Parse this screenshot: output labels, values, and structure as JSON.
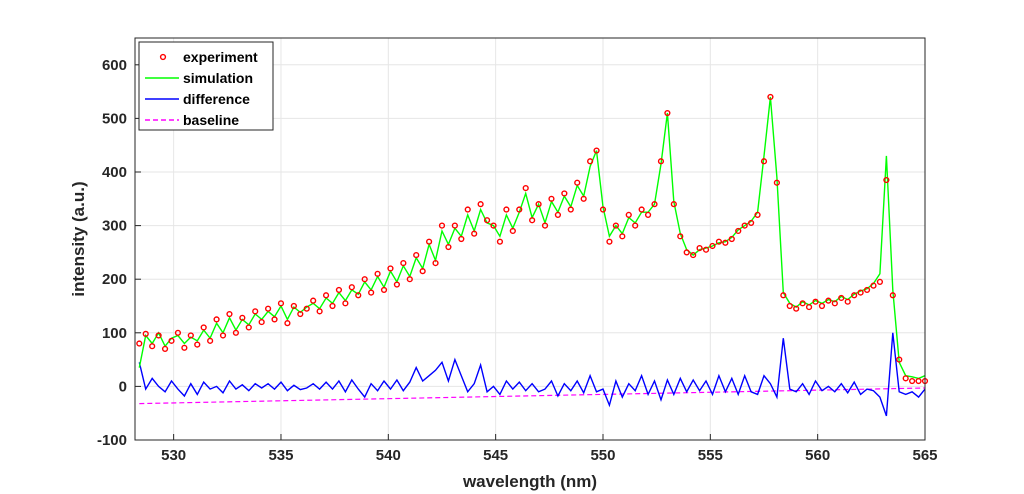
{
  "chart_data": {
    "type": "line",
    "xlabel": "wavelength (nm)",
    "ylabel": "intensity (a.u.)",
    "xlim": [
      528.2,
      565
    ],
    "ylim": [
      -100,
      650
    ],
    "xticks": [
      530,
      535,
      540,
      545,
      550,
      555,
      560,
      565
    ],
    "yticks": [
      -100,
      0,
      100,
      200,
      300,
      400,
      500,
      600
    ],
    "grid": true,
    "legend_position": "top-left",
    "series": [
      {
        "name": "experiment",
        "style": "markers",
        "color": "#ff0000",
        "x": [
          528.4,
          528.7,
          529.0,
          529.3,
          529.6,
          529.9,
          530.2,
          530.5,
          530.8,
          531.1,
          531.4,
          531.7,
          532.0,
          532.3,
          532.6,
          532.9,
          533.2,
          533.5,
          533.8,
          534.1,
          534.4,
          534.7,
          535.0,
          535.3,
          535.6,
          535.9,
          536.2,
          536.5,
          536.8,
          537.1,
          537.4,
          537.7,
          538.0,
          538.3,
          538.6,
          538.9,
          539.2,
          539.5,
          539.8,
          540.1,
          540.4,
          540.7,
          541.0,
          541.3,
          541.6,
          541.9,
          542.2,
          542.5,
          542.8,
          543.1,
          543.4,
          543.7,
          544.0,
          544.3,
          544.6,
          544.9,
          545.2,
          545.5,
          545.8,
          546.1,
          546.4,
          546.7,
          547.0,
          547.3,
          547.6,
          547.9,
          548.2,
          548.5,
          548.8,
          549.1,
          549.4,
          549.7,
          550.0,
          550.3,
          550.6,
          550.9,
          551.2,
          551.5,
          551.8,
          552.1,
          552.4,
          552.7,
          553.0,
          553.3,
          553.6,
          553.9,
          554.2,
          554.5,
          554.8,
          555.1,
          555.4,
          555.7,
          556.0,
          556.3,
          556.6,
          556.9,
          557.2,
          557.5,
          557.8,
          558.1,
          558.4,
          558.7,
          559.0,
          559.3,
          559.6,
          559.9,
          560.2,
          560.5,
          560.8,
          561.1,
          561.4,
          561.7,
          562.0,
          562.3,
          562.6,
          562.9,
          563.2,
          563.5,
          563.8,
          564.1,
          564.4,
          564.7,
          565.0
        ],
        "y": [
          80,
          98,
          75,
          95,
          70,
          85,
          100,
          72,
          95,
          78,
          110,
          85,
          125,
          95,
          135,
          100,
          128,
          110,
          140,
          120,
          145,
          125,
          155,
          118,
          150,
          135,
          145,
          160,
          140,
          170,
          150,
          180,
          155,
          185,
          170,
          200,
          175,
          210,
          180,
          220,
          190,
          230,
          200,
          245,
          215,
          270,
          230,
          300,
          260,
          300,
          275,
          330,
          285,
          340,
          310,
          300,
          270,
          330,
          290,
          330,
          370,
          310,
          340,
          300,
          350,
          320,
          360,
          330,
          380,
          350,
          420,
          440,
          330,
          270,
          300,
          280,
          320,
          300,
          330,
          320,
          340,
          420,
          510,
          340,
          280,
          250,
          245,
          258,
          255,
          262,
          270,
          268,
          275,
          290,
          300,
          305,
          320,
          420,
          540,
          380,
          170,
          150,
          145,
          155,
          148,
          158,
          150,
          160,
          155,
          165,
          158,
          170,
          175,
          180,
          188,
          195,
          385,
          170,
          50,
          15,
          10,
          10,
          10
        ],
        "x_more": []
      },
      {
        "name": "simulation",
        "style": "line",
        "color": "#00ff00",
        "x": [
          528.4,
          528.7,
          529.0,
          529.3,
          529.6,
          529.9,
          530.2,
          530.5,
          530.8,
          531.1,
          531.4,
          531.7,
          532.0,
          532.3,
          532.6,
          532.9,
          533.2,
          533.5,
          533.8,
          534.1,
          534.4,
          534.7,
          535.0,
          535.3,
          535.6,
          535.9,
          536.2,
          536.5,
          536.8,
          537.1,
          537.4,
          537.7,
          538.0,
          538.3,
          538.6,
          538.9,
          539.2,
          539.5,
          539.8,
          540.1,
          540.4,
          540.7,
          541.0,
          541.3,
          541.6,
          541.9,
          542.2,
          542.5,
          542.8,
          543.1,
          543.4,
          543.7,
          544.0,
          544.3,
          544.6,
          544.9,
          545.2,
          545.5,
          545.8,
          546.1,
          546.4,
          546.7,
          547.0,
          547.3,
          547.6,
          547.9,
          548.2,
          548.5,
          548.8,
          549.1,
          549.4,
          549.7,
          550.0,
          550.3,
          550.6,
          550.9,
          551.2,
          551.5,
          551.8,
          552.1,
          552.4,
          552.7,
          553.0,
          553.3,
          553.6,
          553.9,
          554.2,
          554.5,
          554.8,
          555.1,
          555.4,
          555.7,
          556.0,
          556.3,
          556.6,
          556.9,
          557.2,
          557.5,
          557.8,
          558.1,
          558.4,
          558.7,
          559.0,
          559.3,
          559.6,
          559.9,
          560.2,
          560.5,
          560.8,
          561.1,
          561.4,
          561.7,
          562.0,
          562.3,
          562.6,
          562.9,
          563.2,
          563.5,
          563.8,
          564.1,
          564.4,
          564.7,
          565.0
        ],
        "y": [
          35,
          95,
          80,
          100,
          75,
          90,
          95,
          80,
          92,
          85,
          105,
          90,
          118,
          100,
          128,
          105,
          125,
          115,
          135,
          125,
          140,
          130,
          150,
          125,
          148,
          138,
          148,
          155,
          145,
          165,
          155,
          175,
          160,
          180,
          172,
          195,
          180,
          205,
          185,
          215,
          195,
          225,
          205,
          240,
          220,
          265,
          235,
          290,
          265,
          295,
          280,
          320,
          290,
          330,
          305,
          300,
          280,
          320,
          295,
          325,
          360,
          315,
          340,
          305,
          345,
          325,
          355,
          335,
          375,
          355,
          410,
          440,
          335,
          280,
          300,
          285,
          315,
          305,
          325,
          325,
          340,
          415,
          510,
          345,
          285,
          255,
          245,
          255,
          258,
          262,
          268,
          270,
          278,
          292,
          300,
          308,
          325,
          430,
          540,
          390,
          175,
          155,
          148,
          158,
          152,
          160,
          155,
          162,
          158,
          168,
          162,
          172,
          178,
          182,
          192,
          210,
          430,
          180,
          45,
          20,
          18,
          15,
          20
        ]
      },
      {
        "name": "difference",
        "style": "line",
        "color": "#0000ff",
        "x": [
          528.4,
          528.7,
          529.0,
          529.3,
          529.6,
          529.9,
          530.2,
          530.5,
          530.8,
          531.1,
          531.4,
          531.7,
          532.0,
          532.3,
          532.6,
          532.9,
          533.2,
          533.5,
          533.8,
          534.1,
          534.4,
          534.7,
          535.0,
          535.3,
          535.6,
          535.9,
          536.2,
          536.5,
          536.8,
          537.1,
          537.4,
          537.7,
          538.0,
          538.3,
          538.6,
          538.9,
          539.2,
          539.5,
          539.8,
          540.1,
          540.4,
          540.7,
          541.0,
          541.3,
          541.6,
          541.9,
          542.2,
          542.5,
          542.8,
          543.1,
          543.4,
          543.7,
          544.0,
          544.3,
          544.6,
          544.9,
          545.2,
          545.5,
          545.8,
          546.1,
          546.4,
          546.7,
          547.0,
          547.3,
          547.6,
          547.9,
          548.2,
          548.5,
          548.8,
          549.1,
          549.4,
          549.7,
          550.0,
          550.3,
          550.6,
          550.9,
          551.2,
          551.5,
          551.8,
          552.1,
          552.4,
          552.7,
          553.0,
          553.3,
          553.6,
          553.9,
          554.2,
          554.5,
          554.8,
          555.1,
          555.4,
          555.7,
          556.0,
          556.3,
          556.6,
          556.9,
          557.2,
          557.5,
          557.8,
          558.1,
          558.4,
          558.7,
          559.0,
          559.3,
          559.6,
          559.9,
          560.2,
          560.5,
          560.8,
          561.1,
          561.4,
          561.7,
          562.0,
          562.3,
          562.6,
          562.9,
          563.2,
          563.5,
          563.8,
          564.1,
          564.4,
          564.7,
          565.0
        ],
        "y": [
          45,
          -5,
          15,
          0,
          -10,
          10,
          -5,
          -18,
          5,
          -15,
          8,
          -5,
          0,
          -12,
          10,
          -5,
          3,
          -8,
          5,
          -3,
          5,
          -5,
          8,
          -8,
          2,
          -6,
          -3,
          5,
          -5,
          8,
          -5,
          10,
          -10,
          12,
          -5,
          -20,
          5,
          -8,
          10,
          -5,
          12,
          -8,
          8,
          35,
          10,
          20,
          30,
          45,
          10,
          50,
          20,
          -10,
          5,
          40,
          -10,
          0,
          -15,
          10,
          -5,
          8,
          -8,
          5,
          -10,
          -5,
          10,
          -18,
          5,
          -8,
          10,
          -12,
          20,
          -10,
          -5,
          -35,
          10,
          -20,
          5,
          -8,
          20,
          -15,
          10,
          -25,
          12,
          -15,
          15,
          -10,
          12,
          -8,
          10,
          -15,
          20,
          -10,
          15,
          -15,
          20,
          -10,
          -15,
          20,
          5,
          -20,
          90,
          -5,
          -10,
          5,
          -15,
          10,
          -8,
          0,
          -10,
          5,
          -12,
          8,
          -15,
          -5,
          -8,
          -20,
          -55,
          100,
          -10,
          -15,
          -10,
          -20,
          -5
        ]
      },
      {
        "name": "baseline",
        "style": "dashed",
        "color": "#ff00ff",
        "x": [
          528.4,
          565.0
        ],
        "y": [
          -32,
          -3
        ]
      }
    ]
  }
}
